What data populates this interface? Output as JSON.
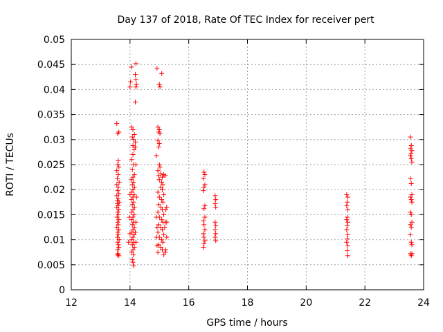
{
  "chart_data": {
    "type": "scatter",
    "title": "Day 137 of 2018, Rate Of TEC Index for receiver pert",
    "xlabel": "GPS time / hours",
    "ylabel": "ROTI / TECUs",
    "xlim": [
      12,
      24
    ],
    "ylim": [
      0,
      0.05
    ],
    "grid": true,
    "marker": "+",
    "marker_color": "#ff0000",
    "x_ticks": [
      12,
      14,
      16,
      18,
      20,
      22,
      24
    ],
    "x_tick_labels": [
      "12",
      "14",
      "16",
      "18",
      "20",
      "22",
      "24"
    ],
    "y_ticks": [
      0,
      0.005,
      0.01,
      0.015,
      0.02,
      0.025,
      0.03,
      0.035,
      0.04,
      0.045,
      0.05
    ],
    "y_tick_labels": [
      "0",
      "0.005",
      "0.01",
      "0.015",
      "0.02",
      "0.025",
      "0.03",
      "0.035",
      "0.04",
      "0.045",
      "0.05"
    ],
    "series": [
      {
        "name": "ROTI",
        "points": [
          [
            13.55,
            0.0332
          ],
          [
            13.58,
            0.0312
          ],
          [
            13.62,
            0.0315
          ],
          [
            13.6,
            0.0258
          ],
          [
            13.58,
            0.025
          ],
          [
            13.62,
            0.0245
          ],
          [
            13.55,
            0.0238
          ],
          [
            13.6,
            0.023
          ],
          [
            13.57,
            0.0222
          ],
          [
            13.63,
            0.0215
          ],
          [
            13.55,
            0.021
          ],
          [
            13.6,
            0.0205
          ],
          [
            13.58,
            0.0198
          ],
          [
            13.62,
            0.0192
          ],
          [
            13.55,
            0.0188
          ],
          [
            13.6,
            0.0182
          ],
          [
            13.57,
            0.0178
          ],
          [
            13.63,
            0.0175
          ],
          [
            13.58,
            0.0172
          ],
          [
            13.6,
            0.0168
          ],
          [
            13.55,
            0.0165
          ],
          [
            13.62,
            0.016
          ],
          [
            13.58,
            0.0155
          ],
          [
            13.6,
            0.015
          ],
          [
            13.56,
            0.0145
          ],
          [
            13.62,
            0.014
          ],
          [
            13.58,
            0.0135
          ],
          [
            13.6,
            0.013
          ],
          [
            13.55,
            0.0125
          ],
          [
            13.62,
            0.012
          ],
          [
            13.58,
            0.0115
          ],
          [
            13.6,
            0.011
          ],
          [
            13.57,
            0.0105
          ],
          [
            13.63,
            0.01
          ],
          [
            13.58,
            0.0095
          ],
          [
            13.6,
            0.009
          ],
          [
            13.62,
            0.0085
          ],
          [
            13.58,
            0.008
          ],
          [
            13.6,
            0.0072
          ],
          [
            13.62,
            0.0068
          ],
          [
            13.57,
            0.007
          ],
          [
            14.05,
            0.0325
          ],
          [
            14.1,
            0.032
          ],
          [
            14.15,
            0.031
          ],
          [
            14.08,
            0.0305
          ],
          [
            14.12,
            0.03
          ],
          [
            14.18,
            0.0295
          ],
          [
            14.1,
            0.0288
          ],
          [
            14.14,
            0.028
          ],
          [
            14.1,
            0.027
          ],
          [
            14.06,
            0.026
          ],
          [
            14.12,
            0.025
          ],
          [
            14.08,
            0.024
          ],
          [
            14.15,
            0.023
          ],
          [
            14.1,
            0.0225
          ],
          [
            14.05,
            0.022
          ],
          [
            14.12,
            0.0215
          ],
          [
            14.08,
            0.021
          ],
          [
            14.15,
            0.0205
          ],
          [
            14.1,
            0.02
          ],
          [
            14.06,
            0.0195
          ],
          [
            14.14,
            0.019
          ],
          [
            14.1,
            0.0185
          ],
          [
            14.05,
            0.018
          ],
          [
            14.12,
            0.0175
          ],
          [
            14.08,
            0.017
          ],
          [
            14.15,
            0.0165
          ],
          [
            14.1,
            0.016
          ],
          [
            14.06,
            0.0155
          ],
          [
            14.14,
            0.015
          ],
          [
            14.1,
            0.0145
          ],
          [
            14.05,
            0.014
          ],
          [
            14.12,
            0.0135
          ],
          [
            14.08,
            0.013
          ],
          [
            14.15,
            0.0125
          ],
          [
            14.1,
            0.012
          ],
          [
            14.06,
            0.0115
          ],
          [
            14.14,
            0.011
          ],
          [
            14.1,
            0.0105
          ],
          [
            14.05,
            0.01
          ],
          [
            14.12,
            0.0095
          ],
          [
            14.08,
            0.009
          ],
          [
            14.15,
            0.0085
          ],
          [
            14.1,
            0.008
          ],
          [
            14.06,
            0.0075
          ],
          [
            14.12,
            0.007
          ],
          [
            14.08,
            0.006
          ],
          [
            14.1,
            0.0055
          ],
          [
            14.12,
            0.0048
          ],
          [
            14.2,
            0.0452
          ],
          [
            14.18,
            0.043
          ],
          [
            14.2,
            0.042
          ],
          [
            14.22,
            0.041
          ],
          [
            14.2,
            0.0405
          ],
          [
            14.18,
            0.0375
          ],
          [
            14.05,
            0.0445
          ],
          [
            14.02,
            0.0415
          ],
          [
            14.0,
            0.0405
          ],
          [
            14.18,
            0.0285
          ],
          [
            14.2,
            0.025
          ],
          [
            14.22,
            0.0185
          ],
          [
            14.2,
            0.0135
          ],
          [
            14.18,
            0.0115
          ],
          [
            14.2,
            0.0095
          ],
          [
            14.0,
            0.019
          ],
          [
            13.98,
            0.0145
          ],
          [
            14.0,
            0.0112
          ],
          [
            13.95,
            0.0095
          ],
          [
            14.92,
            0.0442
          ],
          [
            15.0,
            0.041
          ],
          [
            15.02,
            0.0405
          ],
          [
            15.08,
            0.0432
          ],
          [
            14.95,
            0.0325
          ],
          [
            15.0,
            0.032
          ],
          [
            14.98,
            0.0315
          ],
          [
            15.02,
            0.0312
          ],
          [
            14.95,
            0.0298
          ],
          [
            15.0,
            0.0292
          ],
          [
            14.98,
            0.0285
          ],
          [
            14.9,
            0.0268
          ],
          [
            15.0,
            0.025
          ],
          [
            15.02,
            0.0245
          ],
          [
            14.95,
            0.0238
          ],
          [
            15.05,
            0.0232
          ],
          [
            14.98,
            0.0228
          ],
          [
            15.1,
            0.0225
          ],
          [
            15.0,
            0.022
          ],
          [
            15.15,
            0.023
          ],
          [
            15.2,
            0.0228
          ],
          [
            15.08,
            0.0215
          ],
          [
            15.12,
            0.021
          ],
          [
            15.05,
            0.0205
          ],
          [
            15.1,
            0.02
          ],
          [
            14.95,
            0.0195
          ],
          [
            15.15,
            0.019
          ],
          [
            15.0,
            0.0185
          ],
          [
            15.08,
            0.018
          ],
          [
            15.12,
            0.0175
          ],
          [
            14.98,
            0.017
          ],
          [
            15.05,
            0.0165
          ],
          [
            15.1,
            0.016
          ],
          [
            14.95,
            0.0155
          ],
          [
            15.15,
            0.015
          ],
          [
            15.0,
            0.0145
          ],
          [
            15.08,
            0.014
          ],
          [
            15.12,
            0.0135
          ],
          [
            14.98,
            0.013
          ],
          [
            15.05,
            0.0125
          ],
          [
            15.1,
            0.012
          ],
          [
            14.95,
            0.0115
          ],
          [
            15.15,
            0.011
          ],
          [
            15.0,
            0.0105
          ],
          [
            15.08,
            0.01
          ],
          [
            15.12,
            0.0095
          ],
          [
            14.98,
            0.009
          ],
          [
            15.05,
            0.0085
          ],
          [
            15.1,
            0.008
          ],
          [
            14.95,
            0.0075
          ],
          [
            15.15,
            0.007
          ],
          [
            15.2,
            0.0075
          ],
          [
            15.22,
            0.008
          ],
          [
            15.18,
            0.0125
          ],
          [
            15.2,
            0.0135
          ],
          [
            15.22,
            0.016
          ],
          [
            14.9,
            0.0145
          ],
          [
            14.92,
            0.0125
          ],
          [
            14.9,
            0.0105
          ],
          [
            14.92,
            0.0088
          ],
          [
            15.25,
            0.0105
          ],
          [
            15.25,
            0.0135
          ],
          [
            15.25,
            0.0165
          ],
          [
            16.52,
            0.0235
          ],
          [
            16.55,
            0.023
          ],
          [
            16.5,
            0.0222
          ],
          [
            16.55,
            0.021
          ],
          [
            16.52,
            0.0205
          ],
          [
            16.5,
            0.0198
          ],
          [
            16.55,
            0.0168
          ],
          [
            16.52,
            0.0162
          ],
          [
            16.55,
            0.0145
          ],
          [
            16.5,
            0.0138
          ],
          [
            16.52,
            0.013
          ],
          [
            16.55,
            0.012
          ],
          [
            16.5,
            0.0112
          ],
          [
            16.52,
            0.0105
          ],
          [
            16.55,
            0.0098
          ],
          [
            16.52,
            0.0092
          ],
          [
            16.5,
            0.0085
          ],
          [
            16.9,
            0.0188
          ],
          [
            16.92,
            0.018
          ],
          [
            16.9,
            0.0172
          ],
          [
            16.92,
            0.0165
          ],
          [
            16.9,
            0.0135
          ],
          [
            16.92,
            0.0128
          ],
          [
            16.9,
            0.012
          ],
          [
            16.92,
            0.0112
          ],
          [
            16.9,
            0.0105
          ],
          [
            16.92,
            0.0098
          ],
          [
            21.38,
            0.019
          ],
          [
            21.42,
            0.0185
          ],
          [
            21.4,
            0.0175
          ],
          [
            21.38,
            0.0168
          ],
          [
            21.42,
            0.016
          ],
          [
            21.4,
            0.0145
          ],
          [
            21.38,
            0.014
          ],
          [
            21.42,
            0.0135
          ],
          [
            21.4,
            0.0128
          ],
          [
            21.38,
            0.012
          ],
          [
            21.42,
            0.011
          ],
          [
            21.4,
            0.0102
          ],
          [
            21.38,
            0.0095
          ],
          [
            21.42,
            0.0088
          ],
          [
            21.4,
            0.0078
          ],
          [
            21.42,
            0.0068
          ],
          [
            23.55,
            0.0305
          ],
          [
            23.58,
            0.0288
          ],
          [
            23.55,
            0.0282
          ],
          [
            23.6,
            0.0278
          ],
          [
            23.57,
            0.0272
          ],
          [
            23.55,
            0.0268
          ],
          [
            23.58,
            0.0262
          ],
          [
            23.6,
            0.0255
          ],
          [
            23.55,
            0.0222
          ],
          [
            23.58,
            0.0212
          ],
          [
            23.6,
            0.019
          ],
          [
            23.55,
            0.0185
          ],
          [
            23.58,
            0.018
          ],
          [
            23.6,
            0.0175
          ],
          [
            23.55,
            0.0155
          ],
          [
            23.58,
            0.015
          ],
          [
            23.6,
            0.0135
          ],
          [
            23.55,
            0.013
          ],
          [
            23.58,
            0.0125
          ],
          [
            23.55,
            0.011
          ],
          [
            23.58,
            0.0095
          ],
          [
            23.6,
            0.009
          ],
          [
            23.55,
            0.0072
          ],
          [
            23.58,
            0.0068
          ],
          [
            23.6,
            0.0072
          ]
        ]
      }
    ]
  }
}
